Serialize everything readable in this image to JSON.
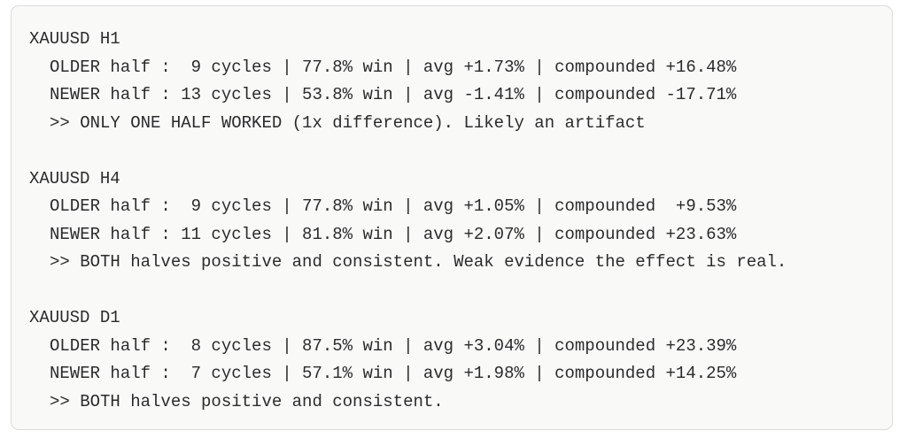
{
  "blocks": [
    {
      "title": "XAUUSD H1",
      "lines": [
        "OLDER half :  9 cycles | 77.8% win | avg +1.73% | compounded +16.48%",
        "NEWER half : 13 cycles | 53.8% win | avg -1.41% | compounded -17.71%"
      ],
      "note": ">> ONLY ONE HALF WORKED (1x difference). Likely an artifact"
    },
    {
      "title": "XAUUSD H4",
      "lines": [
        "OLDER half :  9 cycles | 77.8% win | avg +1.05% | compounded  +9.53%",
        "NEWER half : 11 cycles | 81.8% win | avg +2.07% | compounded +23.63%"
      ],
      "note": ">> BOTH halves positive and consistent. Weak evidence the effect is real."
    },
    {
      "title": "XAUUSD D1",
      "lines": [
        "OLDER half :  8 cycles | 87.5% win | avg +3.04% | compounded +23.39%",
        "NEWER half :  7 cycles | 57.1% win | avg +1.98% | compounded +14.25%"
      ],
      "note": ">> BOTH halves positive and consistent."
    }
  ]
}
